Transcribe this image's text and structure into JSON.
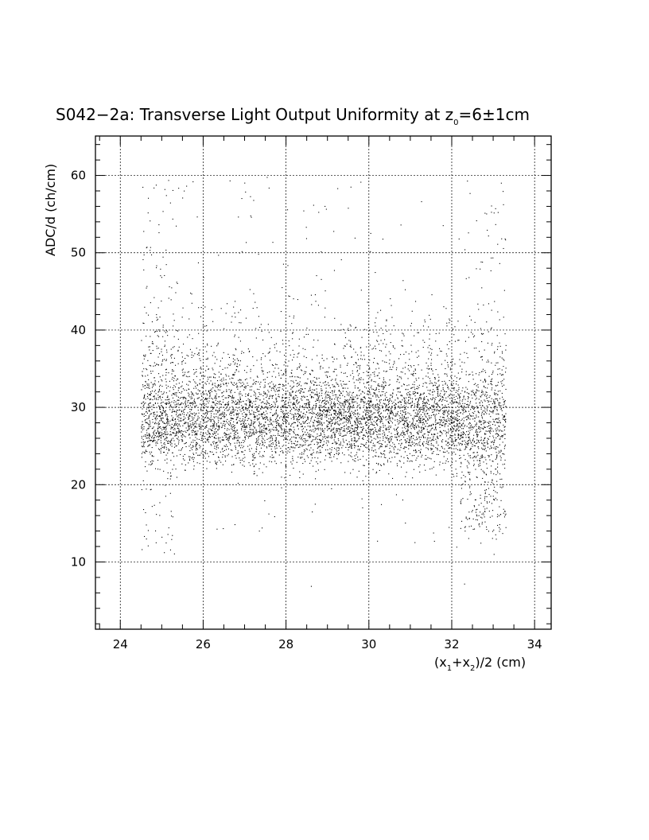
{
  "chart_data": {
    "type": "scatter",
    "title": {
      "main": "S042−2a: Transverse Light Output Uniformity at z",
      "subscript": "0",
      "tail": "=6±1cm"
    },
    "xlabel": {
      "p1": "(x",
      "s1": "1",
      "p2": "+x",
      "s2": "2",
      "p3": ")/2 (cm)"
    },
    "ylabel": "ADC/d (ch/cm)",
    "xlim": [
      23.4,
      34.4
    ],
    "ylim": [
      1.3,
      65.1
    ],
    "x_ticks": [
      24,
      26,
      28,
      30,
      32,
      34
    ],
    "x_tick_labels": [
      "24",
      "26",
      "28",
      "30",
      "32",
      "34"
    ],
    "y_ticks": [
      10,
      20,
      30,
      40,
      50,
      60
    ],
    "y_tick_labels": [
      "10",
      "20",
      "30",
      "40",
      "50",
      "60"
    ],
    "grid": true,
    "point_count": 7000,
    "distribution": {
      "x_range": [
        24.5,
        33.3
      ],
      "core_y_range": [
        22,
        34
      ],
      "core_peak_y": 28,
      "sparse_y_range": [
        11,
        60
      ],
      "isolated_points": [
        {
          "x": 28.6,
          "y": 6.9
        },
        {
          "x": 32.3,
          "y": 7.2
        }
      ]
    },
    "series": [
      {
        "points": []
      }
    ]
  }
}
